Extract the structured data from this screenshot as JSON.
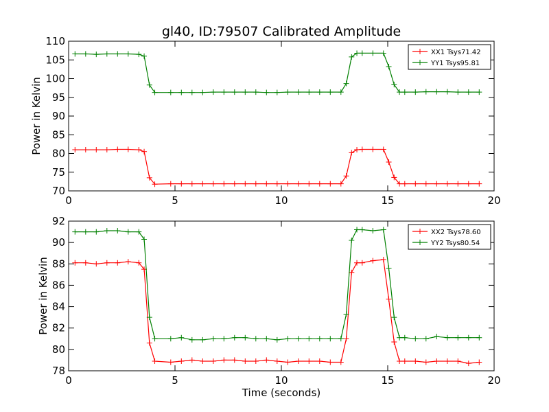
{
  "chart_data": {
    "type": "line",
    "title": "gl40, ID:79507 Calibrated Amplitude",
    "xlabel": "Time (seconds)",
    "panels": [
      {
        "ylabel": "Power in Kelvin",
        "xlim": [
          0,
          20
        ],
        "ylim": [
          70,
          110
        ],
        "xticks": [
          0,
          5,
          10,
          15,
          20
        ],
        "yticks": [
          70,
          75,
          80,
          85,
          90,
          95,
          100,
          105,
          110
        ],
        "show_xlabel": false,
        "legend_position": "top-right",
        "x": [
          0.3,
          0.8,
          1.3,
          1.8,
          2.3,
          2.8,
          3.3,
          3.55,
          3.8,
          4.05,
          4.8,
          5.3,
          5.8,
          6.3,
          6.8,
          7.3,
          7.8,
          8.3,
          8.8,
          9.3,
          9.8,
          10.3,
          10.8,
          11.3,
          11.8,
          12.3,
          12.8,
          13.05,
          13.3,
          13.55,
          13.8,
          14.3,
          14.8,
          15.05,
          15.3,
          15.55,
          15.8,
          16.3,
          16.8,
          17.3,
          17.8,
          18.3,
          18.8,
          19.3
        ],
        "series": [
          {
            "name": "XX1 Tsys71.42",
            "color": "#ff0000",
            "values": [
              81.0,
              81.0,
              81.0,
              81.0,
              81.1,
              81.1,
              81.0,
              80.5,
              73.5,
              71.8,
              71.9,
              71.9,
              71.9,
              71.9,
              71.9,
              71.9,
              71.9,
              71.9,
              71.9,
              71.9,
              71.9,
              71.9,
              71.9,
              71.9,
              71.9,
              71.9,
              71.9,
              74.0,
              80.2,
              81.0,
              81.1,
              81.1,
              81.1,
              77.7,
              73.6,
              71.9,
              71.9,
              71.9,
              71.9,
              71.9,
              71.9,
              71.9,
              71.9,
              71.9
            ]
          },
          {
            "name": "YY1 Tsys95.81",
            "color": "#008000",
            "values": [
              106.6,
              106.6,
              106.5,
              106.6,
              106.6,
              106.6,
              106.5,
              106.0,
              98.3,
              96.3,
              96.3,
              96.3,
              96.3,
              96.3,
              96.4,
              96.4,
              96.4,
              96.4,
              96.4,
              96.3,
              96.3,
              96.4,
              96.4,
              96.4,
              96.4,
              96.4,
              96.4,
              98.7,
              105.8,
              106.8,
              106.8,
              106.8,
              106.8,
              103.2,
              98.4,
              96.4,
              96.4,
              96.4,
              96.5,
              96.5,
              96.5,
              96.4,
              96.4,
              96.4
            ]
          }
        ]
      },
      {
        "ylabel": "Power in Kelvin",
        "xlim": [
          0,
          20
        ],
        "ylim": [
          78,
          92
        ],
        "xticks": [
          0,
          5,
          10,
          15,
          20
        ],
        "yticks": [
          78,
          80,
          82,
          84,
          86,
          88,
          90,
          92
        ],
        "show_xlabel": true,
        "legend_position": "top-right",
        "x": [
          0.3,
          0.8,
          1.3,
          1.8,
          2.3,
          2.8,
          3.3,
          3.55,
          3.8,
          4.05,
          4.8,
          5.3,
          5.8,
          6.3,
          6.8,
          7.3,
          7.8,
          8.3,
          8.8,
          9.3,
          9.8,
          10.3,
          10.8,
          11.3,
          11.8,
          12.3,
          12.8,
          13.05,
          13.3,
          13.55,
          13.8,
          14.3,
          14.8,
          15.05,
          15.3,
          15.55,
          15.8,
          16.3,
          16.8,
          17.3,
          17.8,
          18.3,
          18.8,
          19.3
        ],
        "series": [
          {
            "name": "XX2 Tsys78.60",
            "color": "#ff0000",
            "values": [
              88.1,
              88.1,
              88.0,
              88.1,
              88.1,
              88.2,
              88.1,
              87.5,
              80.6,
              78.9,
              78.8,
              78.9,
              79.0,
              78.9,
              78.9,
              79.0,
              79.0,
              78.9,
              78.9,
              79.0,
              78.9,
              78.8,
              78.9,
              78.9,
              78.9,
              78.8,
              78.8,
              81.0,
              87.2,
              88.1,
              88.1,
              88.3,
              88.4,
              84.7,
              80.7,
              78.9,
              78.9,
              78.9,
              78.8,
              78.9,
              78.9,
              78.9,
              78.7,
              78.8
            ]
          },
          {
            "name": "YY2 Tsys80.54",
            "color": "#008000",
            "values": [
              91.0,
              91.0,
              91.0,
              91.1,
              91.1,
              91.0,
              91.0,
              90.3,
              83.0,
              81.0,
              81.0,
              81.1,
              80.9,
              80.9,
              81.0,
              81.0,
              81.1,
              81.1,
              81.0,
              81.0,
              80.9,
              81.0,
              81.0,
              81.0,
              81.0,
              81.0,
              81.0,
              83.3,
              90.2,
              91.2,
              91.2,
              91.1,
              91.2,
              87.6,
              83.0,
              81.1,
              81.1,
              81.0,
              81.0,
              81.2,
              81.1,
              81.1,
              81.1,
              81.1
            ]
          }
        ]
      }
    ]
  }
}
